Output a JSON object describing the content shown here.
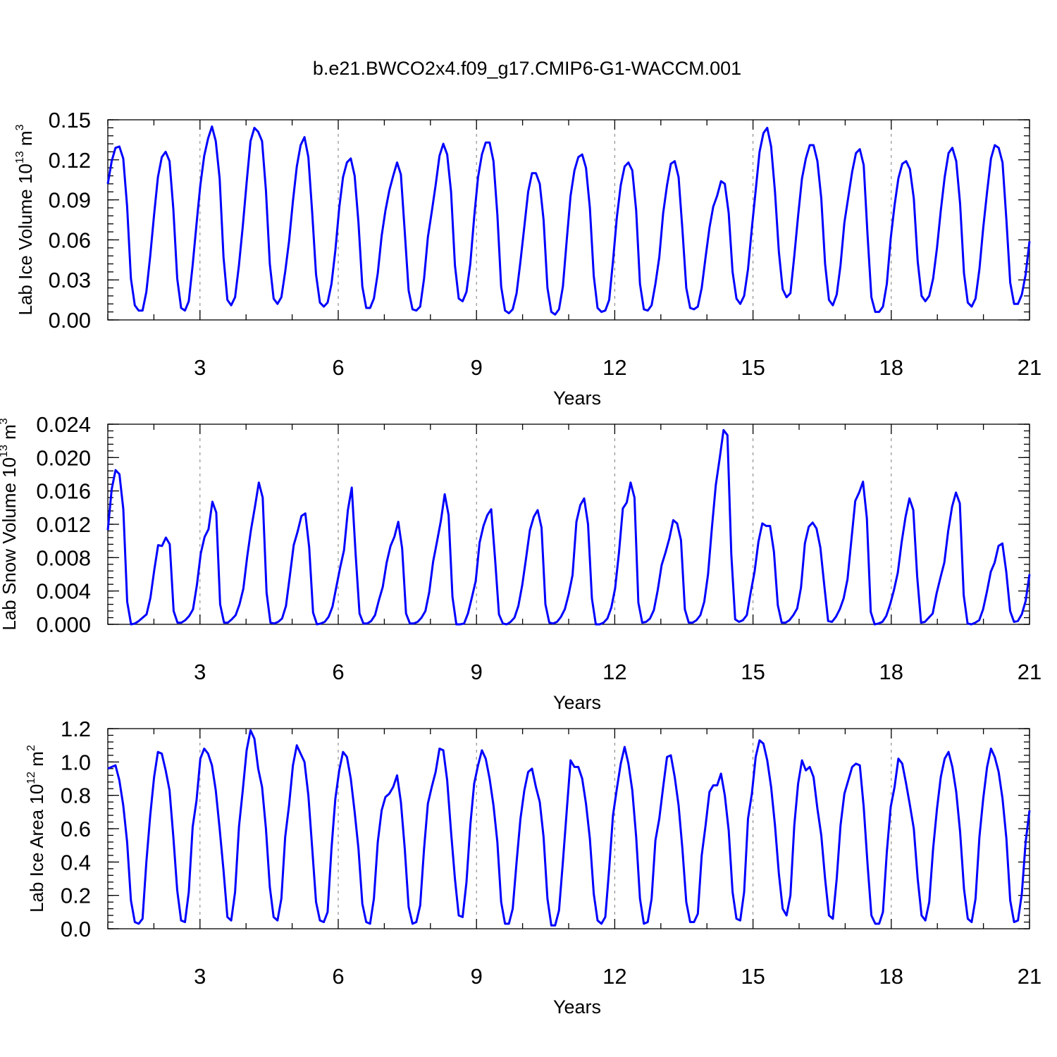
{
  "title": "b.e21.BWCO2x4.f09_g17.CMIP6-G1-WACCM.001",
  "series_color": "#0000ff",
  "chart_data": [
    {
      "type": "line",
      "ylabel": "Lab Ice Volume 10",
      "yunit_exp": "13",
      "yunit": " m",
      "yunit_pow": "3",
      "xlabel": "Years",
      "xlim": [
        1,
        21
      ],
      "ylim": [
        0,
        0.15
      ],
      "xticks": [
        3,
        6,
        9,
        12,
        15,
        18,
        21
      ],
      "yticks": [
        0,
        0.03,
        0.06,
        0.09,
        0.12,
        0.15
      ],
      "yticklabels": [
        "0.00",
        "0.03",
        "0.06",
        "0.09",
        "0.12",
        "0.15"
      ],
      "y_minor_step": 0.006,
      "grid": "vertical dashed at major x ticks",
      "values": [
        0.102,
        0.119,
        0.129,
        0.13,
        0.121,
        0.085,
        0.031,
        0.011,
        0.007,
        0.007,
        0.021,
        0.048,
        0.079,
        0.107,
        0.122,
        0.126,
        0.119,
        0.083,
        0.031,
        0.009,
        0.007,
        0.014,
        0.041,
        0.072,
        0.101,
        0.123,
        0.136,
        0.145,
        0.134,
        0.106,
        0.047,
        0.015,
        0.011,
        0.017,
        0.041,
        0.07,
        0.103,
        0.134,
        0.144,
        0.141,
        0.134,
        0.097,
        0.042,
        0.016,
        0.012,
        0.017,
        0.036,
        0.059,
        0.089,
        0.115,
        0.131,
        0.137,
        0.122,
        0.08,
        0.034,
        0.013,
        0.01,
        0.013,
        0.027,
        0.052,
        0.084,
        0.107,
        0.118,
        0.121,
        0.108,
        0.073,
        0.025,
        0.009,
        0.009,
        0.016,
        0.035,
        0.063,
        0.082,
        0.097,
        0.108,
        0.118,
        0.109,
        0.066,
        0.022,
        0.008,
        0.007,
        0.01,
        0.031,
        0.062,
        0.081,
        0.101,
        0.123,
        0.132,
        0.124,
        0.096,
        0.041,
        0.016,
        0.014,
        0.021,
        0.042,
        0.077,
        0.107,
        0.124,
        0.133,
        0.133,
        0.119,
        0.079,
        0.025,
        0.007,
        0.005,
        0.008,
        0.02,
        0.044,
        0.07,
        0.096,
        0.11,
        0.11,
        0.102,
        0.075,
        0.024,
        0.006,
        0.004,
        0.008,
        0.025,
        0.06,
        0.093,
        0.112,
        0.122,
        0.124,
        0.114,
        0.084,
        0.033,
        0.009,
        0.006,
        0.007,
        0.015,
        0.044,
        0.077,
        0.101,
        0.115,
        0.118,
        0.112,
        0.082,
        0.027,
        0.008,
        0.007,
        0.011,
        0.027,
        0.047,
        0.08,
        0.101,
        0.117,
        0.119,
        0.107,
        0.068,
        0.024,
        0.009,
        0.008,
        0.01,
        0.024,
        0.047,
        0.069,
        0.085,
        0.093,
        0.104,
        0.102,
        0.08,
        0.036,
        0.016,
        0.012,
        0.018,
        0.038,
        0.069,
        0.097,
        0.126,
        0.14,
        0.144,
        0.13,
        0.096,
        0.051,
        0.023,
        0.017,
        0.02,
        0.048,
        0.078,
        0.106,
        0.121,
        0.131,
        0.131,
        0.119,
        0.091,
        0.042,
        0.015,
        0.011,
        0.019,
        0.041,
        0.073,
        0.092,
        0.111,
        0.125,
        0.128,
        0.116,
        0.064,
        0.017,
        0.006,
        0.006,
        0.01,
        0.027,
        0.061,
        0.086,
        0.106,
        0.117,
        0.119,
        0.113,
        0.091,
        0.044,
        0.018,
        0.014,
        0.018,
        0.031,
        0.054,
        0.082,
        0.107,
        0.125,
        0.129,
        0.119,
        0.087,
        0.035,
        0.013,
        0.01,
        0.016,
        0.038,
        0.069,
        0.096,
        0.121,
        0.131,
        0.129,
        0.118,
        0.075,
        0.028,
        0.012,
        0.012,
        0.019,
        0.034,
        0.059
      ]
    },
    {
      "type": "line",
      "ylabel": "Lab Snow Volume 10",
      "yunit_exp": "13",
      "yunit": " m",
      "yunit_pow": "3",
      "xlabel": "Years",
      "xlim": [
        1,
        21
      ],
      "ylim": [
        0,
        0.024
      ],
      "xticks": [
        3,
        6,
        9,
        12,
        15,
        18,
        21
      ],
      "yticks": [
        0,
        0.004,
        0.008,
        0.012,
        0.016,
        0.02,
        0.024
      ],
      "yticklabels": [
        "0.000",
        "0.004",
        "0.008",
        "0.012",
        "0.016",
        "0.020",
        "0.024"
      ],
      "y_minor_step": 0.0008,
      "grid": "vertical dashed at major x ticks",
      "values": [
        0.0113,
        0.0162,
        0.0185,
        0.018,
        0.0138,
        0.0027,
        0.0,
        0.0001,
        0.0004,
        0.0008,
        0.0012,
        0.0032,
        0.0065,
        0.0095,
        0.0094,
        0.0104,
        0.0096,
        0.0016,
        0.0002,
        0.0002,
        0.0005,
        0.001,
        0.0018,
        0.0047,
        0.0085,
        0.0105,
        0.0114,
        0.0147,
        0.0134,
        0.0024,
        0.0002,
        0.0002,
        0.0006,
        0.0011,
        0.0024,
        0.0043,
        0.0081,
        0.0114,
        0.0141,
        0.017,
        0.0152,
        0.0038,
        0.0002,
        0.0001,
        0.0003,
        0.0007,
        0.0022,
        0.0058,
        0.0095,
        0.0111,
        0.013,
        0.0133,
        0.0092,
        0.0014,
        0.0,
        0.0001,
        0.0003,
        0.0009,
        0.0021,
        0.0045,
        0.0068,
        0.0089,
        0.0137,
        0.0164,
        0.0084,
        0.0013,
        0.0001,
        0.0001,
        0.0004,
        0.0011,
        0.0029,
        0.0045,
        0.0074,
        0.0094,
        0.0105,
        0.0123,
        0.0091,
        0.0013,
        0.0001,
        0.0001,
        0.0003,
        0.0008,
        0.0016,
        0.0039,
        0.0075,
        0.0099,
        0.0124,
        0.0156,
        0.0131,
        0.0033,
        0.0,
        0.0,
        0.0001,
        0.0013,
        0.0032,
        0.0052,
        0.0098,
        0.0118,
        0.0131,
        0.0138,
        0.0078,
        0.0012,
        0.0001,
        0.0,
        0.0003,
        0.0008,
        0.0022,
        0.0047,
        0.0079,
        0.0113,
        0.0129,
        0.0137,
        0.0116,
        0.0024,
        0.0002,
        0.0001,
        0.0003,
        0.0009,
        0.0018,
        0.0036,
        0.0059,
        0.0123,
        0.0143,
        0.0151,
        0.012,
        0.0031,
        0.0,
        0.0,
        0.0002,
        0.0007,
        0.002,
        0.0043,
        0.0086,
        0.0139,
        0.0146,
        0.017,
        0.0152,
        0.0026,
        0.0002,
        0.0003,
        0.0007,
        0.0017,
        0.0041,
        0.0071,
        0.0086,
        0.0103,
        0.0125,
        0.0121,
        0.0101,
        0.0018,
        0.0002,
        0.0002,
        0.0005,
        0.0011,
        0.0027,
        0.006,
        0.0116,
        0.0167,
        0.0199,
        0.0233,
        0.0227,
        0.0084,
        0.0006,
        0.0003,
        0.0005,
        0.0011,
        0.0038,
        0.0063,
        0.0099,
        0.0121,
        0.0118,
        0.0118,
        0.0087,
        0.0023,
        0.0002,
        0.0002,
        0.0005,
        0.0011,
        0.0019,
        0.0044,
        0.0097,
        0.0117,
        0.0122,
        0.0115,
        0.0092,
        0.0047,
        0.0004,
        0.0003,
        0.0009,
        0.0018,
        0.0031,
        0.0054,
        0.0101,
        0.0148,
        0.0158,
        0.0171,
        0.0127,
        0.0015,
        0.0,
        0.0001,
        0.0003,
        0.001,
        0.0024,
        0.0041,
        0.0062,
        0.0099,
        0.0129,
        0.0151,
        0.0137,
        0.0057,
        0.0002,
        0.0003,
        0.0008,
        0.0013,
        0.0037,
        0.0056,
        0.0074,
        0.0112,
        0.0141,
        0.0158,
        0.0145,
        0.0035,
        0.0001,
        0.0,
        0.0002,
        0.0005,
        0.0018,
        0.0039,
        0.0063,
        0.0074,
        0.0094,
        0.0097,
        0.0063,
        0.0016,
        0.0003,
        0.0004,
        0.0012,
        0.0028,
        0.006
      ]
    },
    {
      "type": "line",
      "ylabel": "Lab Ice Area 10",
      "yunit_exp": "12",
      "yunit": " m",
      "yunit_pow": "2",
      "xlabel": "Years",
      "xlim": [
        1,
        21
      ],
      "ylim": [
        0,
        1.2
      ],
      "xticks": [
        3,
        6,
        9,
        12,
        15,
        18,
        21
      ],
      "yticks": [
        0,
        0.2,
        0.4,
        0.6,
        0.8,
        1.0,
        1.2
      ],
      "yticklabels": [
        "0.0",
        "0.2",
        "0.4",
        "0.6",
        "0.8",
        "1.0",
        "1.2"
      ],
      "y_minor_step": 0.04,
      "grid": "vertical dashed at major x ticks",
      "values": [
        0.96,
        0.97,
        0.98,
        0.89,
        0.74,
        0.52,
        0.17,
        0.04,
        0.03,
        0.06,
        0.4,
        0.68,
        0.91,
        1.06,
        1.05,
        0.95,
        0.83,
        0.55,
        0.23,
        0.05,
        0.04,
        0.22,
        0.61,
        0.77,
        1.02,
        1.08,
        1.05,
        0.98,
        0.83,
        0.6,
        0.35,
        0.07,
        0.05,
        0.22,
        0.61,
        0.83,
        1.07,
        1.19,
        1.14,
        0.96,
        0.85,
        0.6,
        0.25,
        0.07,
        0.05,
        0.18,
        0.55,
        0.74,
        0.98,
        1.1,
        1.05,
        1.0,
        0.8,
        0.48,
        0.16,
        0.05,
        0.04,
        0.1,
        0.48,
        0.78,
        0.95,
        1.06,
        1.03,
        0.9,
        0.7,
        0.48,
        0.15,
        0.04,
        0.03,
        0.18,
        0.52,
        0.71,
        0.79,
        0.81,
        0.85,
        0.92,
        0.76,
        0.48,
        0.13,
        0.03,
        0.04,
        0.14,
        0.48,
        0.75,
        0.85,
        0.94,
        1.08,
        1.07,
        0.89,
        0.58,
        0.3,
        0.08,
        0.07,
        0.28,
        0.62,
        0.87,
        0.98,
        1.07,
        1.02,
        0.9,
        0.74,
        0.52,
        0.16,
        0.03,
        0.03,
        0.12,
        0.4,
        0.66,
        0.83,
        0.94,
        0.96,
        0.85,
        0.76,
        0.55,
        0.18,
        0.02,
        0.02,
        0.11,
        0.4,
        0.71,
        1.01,
        0.97,
        0.97,
        0.9,
        0.75,
        0.54,
        0.21,
        0.05,
        0.03,
        0.07,
        0.36,
        0.68,
        0.84,
        0.99,
        1.09,
        0.99,
        0.83,
        0.55,
        0.18,
        0.03,
        0.04,
        0.18,
        0.53,
        0.66,
        0.85,
        1.03,
        1.04,
        0.91,
        0.74,
        0.48,
        0.16,
        0.04,
        0.04,
        0.09,
        0.44,
        0.62,
        0.82,
        0.86,
        0.86,
        0.93,
        0.8,
        0.59,
        0.22,
        0.06,
        0.05,
        0.22,
        0.66,
        0.81,
        1.03,
        1.13,
        1.11,
        1.01,
        0.85,
        0.62,
        0.33,
        0.12,
        0.08,
        0.2,
        0.62,
        0.87,
        1.01,
        0.95,
        0.97,
        0.91,
        0.72,
        0.56,
        0.3,
        0.08,
        0.06,
        0.3,
        0.62,
        0.81,
        0.89,
        0.97,
        0.99,
        0.98,
        0.73,
        0.39,
        0.08,
        0.03,
        0.03,
        0.1,
        0.46,
        0.73,
        0.85,
        1.02,
        0.99,
        0.87,
        0.74,
        0.6,
        0.3,
        0.08,
        0.05,
        0.16,
        0.48,
        0.72,
        0.91,
        1.02,
        1.06,
        0.97,
        0.82,
        0.58,
        0.24,
        0.06,
        0.04,
        0.18,
        0.55,
        0.78,
        0.97,
        1.08,
        1.03,
        0.94,
        0.78,
        0.54,
        0.17,
        0.04,
        0.05,
        0.21,
        0.52,
        0.71
      ]
    }
  ]
}
